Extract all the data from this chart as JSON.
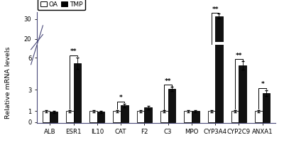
{
  "categories": [
    "ALB",
    "ESR1",
    "IL10",
    "CAT",
    "F2",
    "C3",
    "MPO",
    "CYP3A4",
    "CYP2C9",
    "ANXA1"
  ],
  "oa_values": [
    1.0,
    1.0,
    1.0,
    1.0,
    1.0,
    1.0,
    1.0,
    1.0,
    1.0,
    1.0
  ],
  "tmp_values": [
    0.95,
    5.5,
    0.95,
    1.55,
    1.35,
    3.1,
    1.0,
    31.5,
    5.3,
    2.7
  ],
  "oa_errors": [
    0.08,
    0.1,
    0.08,
    0.1,
    0.1,
    0.08,
    0.08,
    0.1,
    0.1,
    0.1
  ],
  "tmp_errors": [
    0.1,
    0.55,
    0.1,
    0.18,
    0.18,
    0.18,
    0.1,
    1.1,
    0.38,
    0.28
  ],
  "significance": [
    "",
    "**",
    "",
    "*",
    "",
    "**",
    "",
    "**",
    "**",
    "*"
  ],
  "oa_color": "#ffffff",
  "tmp_color": "#111111",
  "edge_color": "#000000",
  "ylabel": "Relative mRNA levels",
  "bar_width": 0.32,
  "spine_color": "#4a4a7a",
  "yticks_lower": [
    0,
    1,
    3,
    6
  ],
  "yticks_upper": [
    20,
    30
  ],
  "ylim_lower": [
    -0.1,
    7.2
  ],
  "ylim_upper": [
    18.5,
    33.5
  ],
  "figsize": [
    4.0,
    2.11
  ],
  "dpi": 100
}
